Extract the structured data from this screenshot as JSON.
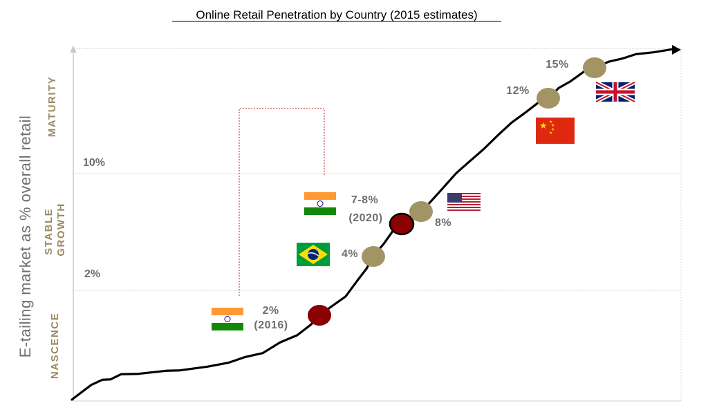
{
  "chart_data": {
    "type": "line",
    "title": "Online Retail Penetration by Country (2015 estimates)",
    "ylabel": "E-tailing market as % overall retail",
    "xlabel": "",
    "grid": true,
    "y_ticks": [
      {
        "label": "2%",
        "value": 2
      },
      {
        "label": "10%",
        "value": 10
      }
    ],
    "phases": [
      {
        "label": "NASCENCE"
      },
      {
        "label": "STABLE GROWTH",
        "lines": [
          "STABLE",
          "GROWTH"
        ]
      },
      {
        "label": "MATURITY"
      }
    ],
    "points": [
      {
        "country": "India",
        "label": "2% (2016)",
        "lines": [
          "2%",
          "(2016)"
        ],
        "value": 2,
        "flag": "india-flag",
        "marker_color": "#8b0000"
      },
      {
        "country": "Brazil",
        "label": "4%",
        "lines": [
          "4%"
        ],
        "value": 4,
        "flag": "brazil-flag",
        "marker_color": "#a39466"
      },
      {
        "country": "India",
        "label": "7-8% (2020)",
        "lines": [
          "7-8%",
          "(2020)"
        ],
        "value": 7.5,
        "flag": "india-flag",
        "marker_color": "#8b0000"
      },
      {
        "country": "United States",
        "label": "8%",
        "lines": [
          "8%"
        ],
        "value": 8,
        "flag": "us-flag",
        "marker_color": "#a39466"
      },
      {
        "country": "China",
        "label": "12%",
        "lines": [
          "12%"
        ],
        "value": 12,
        "flag": "china-flag",
        "marker_color": "#a39466"
      },
      {
        "country": "United Kingdom",
        "label": "15%",
        "lines": [
          "15%"
        ],
        "value": 15,
        "flag": "uk-flag",
        "marker_color": "#a39466"
      }
    ],
    "colors": {
      "curve": "#000000",
      "actual_marker": "#a39466",
      "india_marker": "#8b0000",
      "connector": "#b22222",
      "phase_text": "#9a8a62",
      "axis_text": "#6e6e6e",
      "grid": "#cccccc"
    }
  }
}
